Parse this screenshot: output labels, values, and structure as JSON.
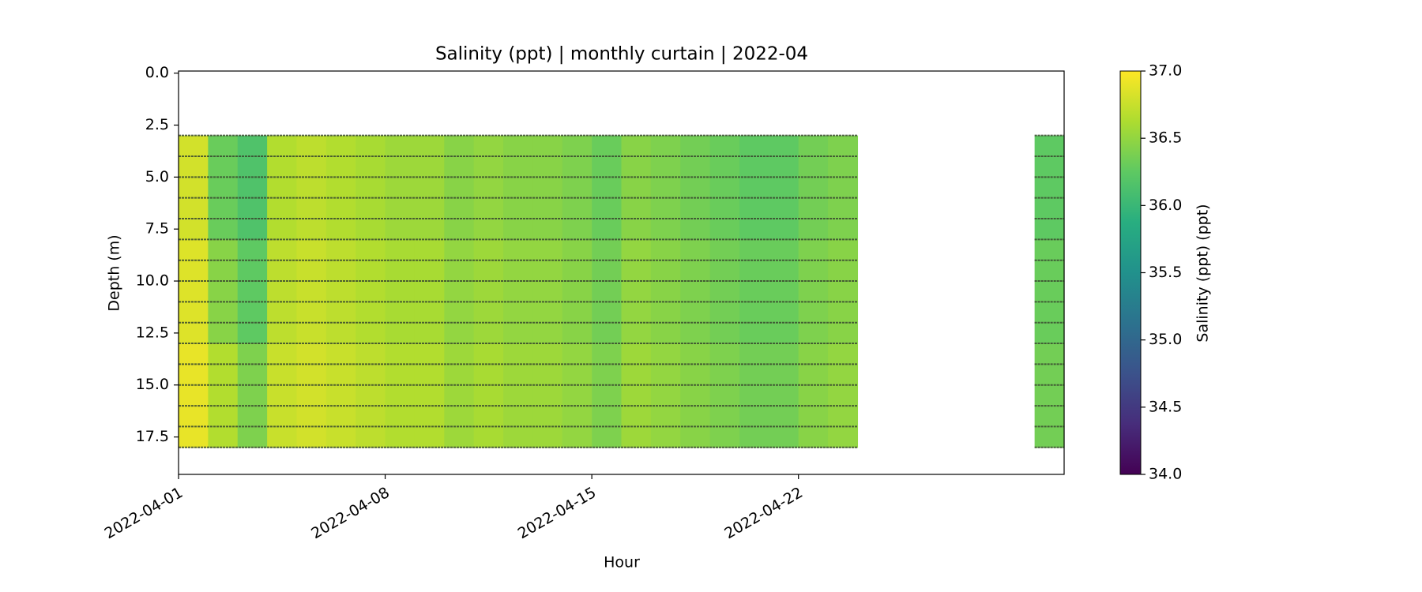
{
  "chart_data": {
    "type": "heatmap",
    "title": "Salinity (ppt) | monthly curtain | 2022-04",
    "x_label": "Hour",
    "y_label": "Depth (m)",
    "colorbar_label": "Salinity (ppt) (ppt)",
    "colormap": "viridis",
    "clim": [
      34,
      37
    ],
    "cticks": [
      {
        "value": 34,
        "label": "34.0"
      },
      {
        "value": 34.5,
        "label": "34.5"
      },
      {
        "value": 35,
        "label": "35.0"
      },
      {
        "value": 35.5,
        "label": "35.5"
      },
      {
        "value": 36,
        "label": "36.0"
      },
      {
        "value": 36.5,
        "label": "36.5"
      },
      {
        "value": 37,
        "label": "37.0"
      }
    ],
    "xlim": [
      "2022-04-01",
      "2022-05-01"
    ],
    "xticks": [
      "2022-04-01",
      "2022-04-08",
      "2022-04-15",
      "2022-04-22"
    ],
    "ylim": [
      19.3,
      -0.1
    ],
    "yticks": [
      {
        "value": 0,
        "label": "0.0"
      },
      {
        "value": 2.5,
        "label": "2.5"
      },
      {
        "value": 5,
        "label": "5.0"
      },
      {
        "value": 7.5,
        "label": "7.5"
      },
      {
        "value": 10,
        "label": "10.0"
      },
      {
        "value": 12.5,
        "label": "12.5"
      },
      {
        "value": 15,
        "label": "15.0"
      },
      {
        "value": 17.5,
        "label": "17.5"
      }
    ],
    "x": [
      "2022-04-01",
      "2022-04-02",
      "2022-04-03",
      "2022-04-04",
      "2022-04-05",
      "2022-04-06",
      "2022-04-07",
      "2022-04-08",
      "2022-04-09",
      "2022-04-10",
      "2022-04-11",
      "2022-04-12",
      "2022-04-13",
      "2022-04-14",
      "2022-04-15",
      "2022-04-16",
      "2022-04-17",
      "2022-04-18",
      "2022-04-19",
      "2022-04-20",
      "2022-04-21",
      "2022-04-22",
      "2022-04-23",
      "2022-04-30"
    ],
    "y": [
      3,
      4,
      5,
      6,
      7,
      8,
      9,
      10,
      11,
      12,
      13,
      14,
      15,
      16,
      17
    ],
    "sensor_depths": [
      3,
      4,
      5,
      6,
      7,
      8,
      9,
      10,
      11,
      12,
      13,
      14,
      15,
      16,
      17,
      18
    ],
    "line_color": "#3a4a30",
    "z": [
      [
        36.8,
        36.3,
        36.15,
        36.65,
        36.7,
        36.65,
        36.6,
        36.55,
        36.55,
        36.45,
        36.5,
        36.45,
        36.45,
        36.4,
        36.3,
        36.45,
        36.4,
        36.35,
        36.3,
        36.25,
        36.25,
        36.35,
        36.4,
        36.25
      ],
      [
        36.8,
        36.3,
        36.15,
        36.65,
        36.7,
        36.65,
        36.6,
        36.55,
        36.55,
        36.45,
        36.5,
        36.45,
        36.45,
        36.4,
        36.3,
        36.45,
        36.4,
        36.35,
        36.3,
        36.25,
        36.25,
        36.35,
        36.4,
        36.25
      ],
      [
        36.8,
        36.3,
        36.15,
        36.65,
        36.7,
        36.65,
        36.6,
        36.55,
        36.55,
        36.45,
        36.5,
        36.45,
        36.45,
        36.4,
        36.3,
        36.45,
        36.4,
        36.35,
        36.3,
        36.25,
        36.25,
        36.35,
        36.4,
        36.25
      ],
      [
        36.8,
        36.3,
        36.15,
        36.65,
        36.7,
        36.65,
        36.6,
        36.55,
        36.55,
        36.45,
        36.5,
        36.45,
        36.45,
        36.4,
        36.3,
        36.45,
        36.4,
        36.35,
        36.3,
        36.25,
        36.25,
        36.35,
        36.4,
        36.25
      ],
      [
        36.8,
        36.3,
        36.15,
        36.65,
        36.7,
        36.65,
        36.6,
        36.55,
        36.55,
        36.45,
        36.5,
        36.45,
        36.45,
        36.4,
        36.3,
        36.45,
        36.4,
        36.35,
        36.3,
        36.25,
        36.25,
        36.35,
        36.4,
        36.25
      ],
      [
        36.85,
        36.45,
        36.25,
        36.7,
        36.75,
        36.7,
        36.65,
        36.6,
        36.6,
        36.5,
        36.55,
        36.5,
        36.5,
        36.45,
        36.35,
        36.5,
        36.45,
        36.4,
        36.35,
        36.3,
        36.3,
        36.4,
        36.45,
        36.3
      ],
      [
        36.85,
        36.45,
        36.25,
        36.7,
        36.75,
        36.7,
        36.65,
        36.6,
        36.6,
        36.5,
        36.55,
        36.5,
        36.5,
        36.45,
        36.35,
        36.5,
        36.45,
        36.4,
        36.35,
        36.3,
        36.3,
        36.4,
        36.45,
        36.3
      ],
      [
        36.85,
        36.45,
        36.25,
        36.7,
        36.75,
        36.7,
        36.65,
        36.6,
        36.6,
        36.5,
        36.55,
        36.5,
        36.5,
        36.45,
        36.35,
        36.5,
        36.45,
        36.4,
        36.35,
        36.3,
        36.3,
        36.4,
        36.45,
        36.3
      ],
      [
        36.85,
        36.45,
        36.25,
        36.7,
        36.75,
        36.7,
        36.65,
        36.6,
        36.6,
        36.5,
        36.55,
        36.5,
        36.5,
        36.45,
        36.35,
        36.5,
        36.45,
        36.4,
        36.35,
        36.3,
        36.3,
        36.4,
        36.45,
        36.3
      ],
      [
        36.85,
        36.45,
        36.25,
        36.7,
        36.75,
        36.7,
        36.65,
        36.6,
        36.6,
        36.5,
        36.55,
        36.5,
        36.5,
        36.45,
        36.35,
        36.5,
        36.45,
        36.4,
        36.35,
        36.3,
        36.3,
        36.4,
        36.45,
        36.3
      ],
      [
        36.9,
        36.65,
        36.4,
        36.75,
        36.8,
        36.75,
        36.7,
        36.65,
        36.65,
        36.55,
        36.6,
        36.55,
        36.55,
        36.5,
        36.4,
        36.55,
        36.5,
        36.45,
        36.4,
        36.35,
        36.35,
        36.45,
        36.5,
        36.35
      ],
      [
        36.9,
        36.65,
        36.4,
        36.75,
        36.8,
        36.75,
        36.7,
        36.65,
        36.65,
        36.55,
        36.6,
        36.55,
        36.55,
        36.5,
        36.4,
        36.55,
        36.5,
        36.45,
        36.4,
        36.35,
        36.35,
        36.45,
        36.5,
        36.35
      ],
      [
        36.9,
        36.65,
        36.4,
        36.75,
        36.8,
        36.75,
        36.7,
        36.65,
        36.65,
        36.55,
        36.6,
        36.55,
        36.55,
        36.5,
        36.4,
        36.55,
        36.5,
        36.45,
        36.4,
        36.35,
        36.35,
        36.45,
        36.5,
        36.35
      ],
      [
        36.9,
        36.65,
        36.4,
        36.75,
        36.8,
        36.75,
        36.7,
        36.65,
        36.65,
        36.55,
        36.6,
        36.55,
        36.55,
        36.5,
        36.4,
        36.55,
        36.5,
        36.45,
        36.4,
        36.35,
        36.35,
        36.45,
        36.5,
        36.35
      ],
      [
        36.9,
        36.65,
        36.4,
        36.75,
        36.8,
        36.75,
        36.7,
        36.65,
        36.65,
        36.55,
        36.6,
        36.55,
        36.55,
        36.5,
        36.4,
        36.55,
        36.5,
        36.45,
        36.4,
        36.35,
        36.35,
        36.45,
        36.5,
        36.35
      ]
    ]
  }
}
